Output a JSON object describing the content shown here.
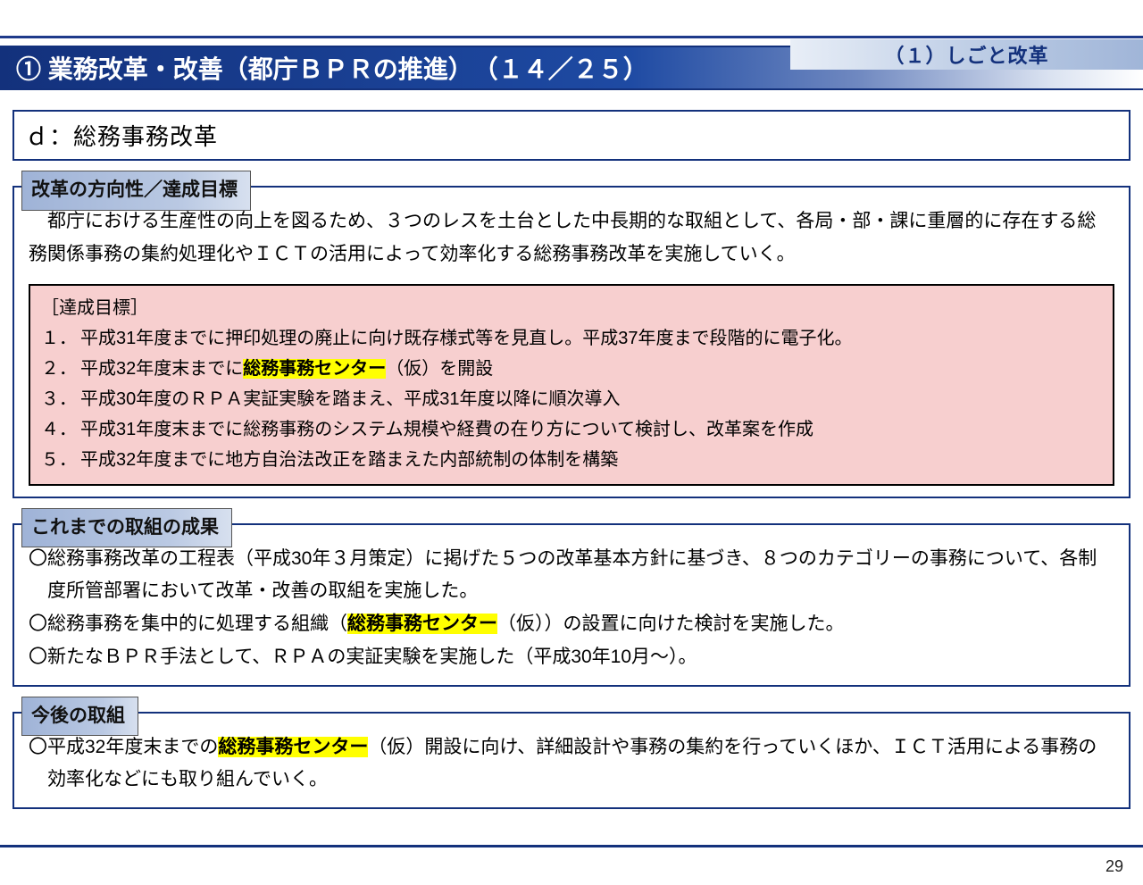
{
  "colors": {
    "primary": "#13317c",
    "grad_start": "#13317c",
    "grad_end": "#ffffff",
    "badge_grad_from": "#e8eef7",
    "badge_grad_to": "#a0b5d8",
    "label_grad_from": "#9fb3d7",
    "label_grad_to": "#d7e0ef",
    "goal_bg": "#f7cfcf",
    "highlight": "#ffff00"
  },
  "header": {
    "corner": "（１）しごと改革",
    "title": "① 業務改革・改善（都庁ＢＰＲの推進）　（１４／２５）"
  },
  "d_label": "ｄ：総務事務改革",
  "direction": {
    "label": "改革の方向性／達成目標",
    "intro": "都庁における生産性の向上を図るため、３つのレスを土台とした中長期的な取組として、各局・部・課に重層的に存在する総務関係事務の集約処理化やＩＣＴの活用によって効率化する総務事務改革を実施していく。",
    "goals_header": "［達成目標］",
    "goals": [
      {
        "num": "１．",
        "pre": "平成31年度までに押印処理の廃止に向け既存様式等を見直し。平成37年度まで段階的に電子化。",
        "hl": "",
        "post": ""
      },
      {
        "num": "２．",
        "pre": "平成32年度末までに",
        "hl": "総務事務センター",
        "post": "（仮）を開設"
      },
      {
        "num": "３．",
        "pre": "平成30年度のＲＰＡ実証実験を踏まえ、平成31年度以降に順次導入",
        "hl": "",
        "post": ""
      },
      {
        "num": "４．",
        "pre": "平成31年度末までに総務事務のシステム規模や経費の在り方について検討し、改革案を作成",
        "hl": "",
        "post": ""
      },
      {
        "num": "５．",
        "pre": "平成32年度までに地方自治法改正を踏まえた内部統制の体制を構築",
        "hl": "",
        "post": ""
      }
    ]
  },
  "results": {
    "label": "これまでの取組の成果",
    "items": [
      {
        "pre": "総務事務改革の工程表（平成30年３月策定）に掲げた５つの改革基本方針に基づき、８つのカテゴリーの事務について、各制度所管部署において改革・改善の取組を実施した。",
        "hl": "",
        "post": ""
      },
      {
        "pre": "総務事務を集中的に処理する組織（",
        "hl": "総務事務センター",
        "post": "（仮））の設置に向けた検討を実施した。"
      },
      {
        "pre": "新たなＢＰＲ手法として、ＲＰＡの実証実験を実施した（平成30年10月～）。",
        "hl": "",
        "post": ""
      }
    ]
  },
  "future": {
    "label": "今後の取組",
    "items": [
      {
        "pre": "平成32年度末までの",
        "hl": "総務事務センター",
        "post": "（仮）開設に向け、詳細設計や事務の集約を行っていくほか、ＩＣＴ活用による事務の効率化などにも取り組んでいく。"
      }
    ]
  },
  "page_number": "29"
}
